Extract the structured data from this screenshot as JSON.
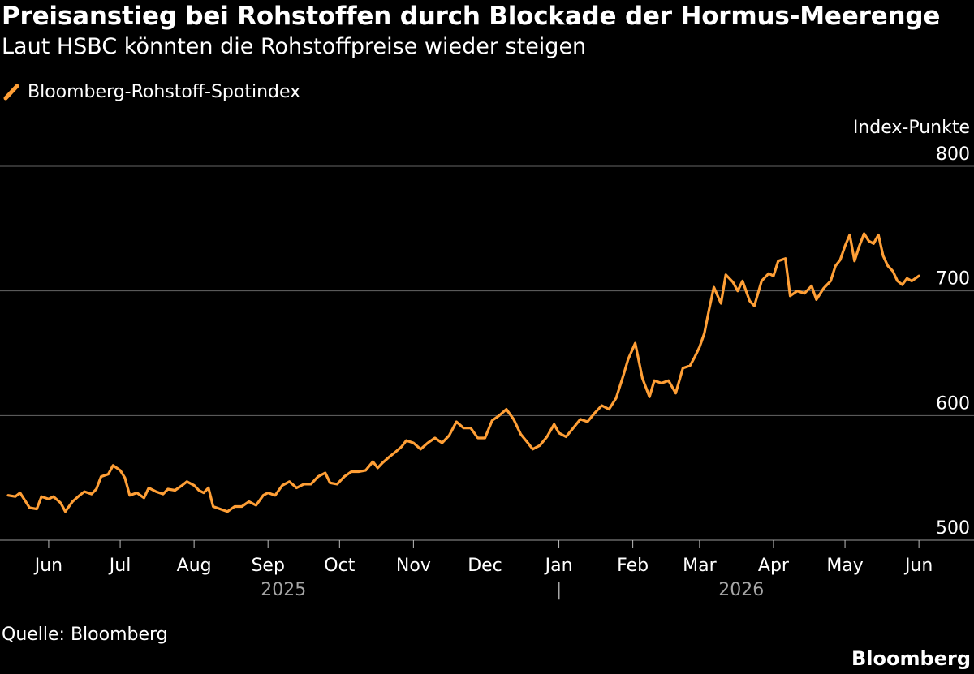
{
  "header": {
    "title": "Preisanstieg bei Rohstoffen durch Blockade der Hormus-Meerenge",
    "subtitle": "Laut HSBC könnten die Rohstoffpreise wieder steigen"
  },
  "footer": {
    "source": "Quelle: Bloomberg",
    "brand": "Bloomberg"
  },
  "colors": {
    "background": "#000000",
    "line": "#ff9f36",
    "grid": "#666666",
    "text": "#ffffff",
    "year_text": "#a6a6a6"
  },
  "chart_data": {
    "type": "line",
    "title": "Preisanstieg bei Rohstoffen durch Blockade der Hormus-Meerenge",
    "subtitle": "Laut HSBC könnten die Rohstoffpreise wieder steigen",
    "ylabel": "Index-Punkte",
    "ylim": [
      500,
      800
    ],
    "yticks": [
      500,
      600,
      700,
      800
    ],
    "grid": true,
    "legend_position": "top-left",
    "x_axis": {
      "type": "date",
      "range": [
        "2025-05-15",
        "2026-06-03"
      ],
      "ticks": [
        {
          "label": "Jun",
          "date": "2025-06-01"
        },
        {
          "label": "Jul",
          "date": "2025-07-01"
        },
        {
          "label": "Aug",
          "date": "2025-08-01"
        },
        {
          "label": "Sep",
          "date": "2025-09-01"
        },
        {
          "label": "Oct",
          "date": "2025-10-01"
        },
        {
          "label": "Nov",
          "date": "2025-11-01"
        },
        {
          "label": "Dec",
          "date": "2025-12-01"
        },
        {
          "label": "Jan",
          "date": "2026-01-01"
        },
        {
          "label": "Feb",
          "date": "2026-02-01"
        },
        {
          "label": "Mar",
          "date": "2026-03-01"
        },
        {
          "label": "Apr",
          "date": "2026-04-01"
        },
        {
          "label": "May",
          "date": "2026-05-01"
        },
        {
          "label": "Jun",
          "date": "2026-06-01"
        }
      ],
      "years": [
        {
          "label": "2025",
          "from": "2025-05-15",
          "to": "2026-01-01"
        },
        {
          "label": "2026",
          "from": "2026-01-01",
          "to": "2026-06-03"
        }
      ],
      "year_divider": "|"
    },
    "series": [
      {
        "name": "Bloomberg-Rohstoff-Spotindex",
        "color": "#ff9f36",
        "points": [
          [
            "2025-05-15",
            536
          ],
          [
            "2025-05-18",
            535
          ],
          [
            "2025-05-20",
            538
          ],
          [
            "2025-05-22",
            532
          ],
          [
            "2025-05-24",
            526
          ],
          [
            "2025-05-27",
            525
          ],
          [
            "2025-05-29",
            535
          ],
          [
            "2025-06-01",
            533
          ],
          [
            "2025-06-03",
            535
          ],
          [
            "2025-06-06",
            530
          ],
          [
            "2025-06-08",
            523
          ],
          [
            "2025-06-11",
            531
          ],
          [
            "2025-06-14",
            536
          ],
          [
            "2025-06-16",
            539
          ],
          [
            "2025-06-19",
            537
          ],
          [
            "2025-06-21",
            541
          ],
          [
            "2025-06-23",
            551
          ],
          [
            "2025-06-26",
            553
          ],
          [
            "2025-06-28",
            560
          ],
          [
            "2025-07-01",
            556
          ],
          [
            "2025-07-03",
            550
          ],
          [
            "2025-07-05",
            536
          ],
          [
            "2025-07-08",
            538
          ],
          [
            "2025-07-11",
            534
          ],
          [
            "2025-07-13",
            542
          ],
          [
            "2025-07-16",
            539
          ],
          [
            "2025-07-19",
            537
          ],
          [
            "2025-07-21",
            541
          ],
          [
            "2025-07-24",
            540
          ],
          [
            "2025-07-27",
            544
          ],
          [
            "2025-07-29",
            547
          ],
          [
            "2025-08-01",
            544
          ],
          [
            "2025-08-03",
            540
          ],
          [
            "2025-08-05",
            538
          ],
          [
            "2025-08-07",
            542
          ],
          [
            "2025-08-09",
            527
          ],
          [
            "2025-08-12",
            525
          ],
          [
            "2025-08-15",
            523
          ],
          [
            "2025-08-18",
            527
          ],
          [
            "2025-08-21",
            527
          ],
          [
            "2025-08-24",
            531
          ],
          [
            "2025-08-27",
            528
          ],
          [
            "2025-08-30",
            536
          ],
          [
            "2025-09-01",
            538
          ],
          [
            "2025-09-04",
            536
          ],
          [
            "2025-09-07",
            544
          ],
          [
            "2025-09-10",
            547
          ],
          [
            "2025-09-13",
            542
          ],
          [
            "2025-09-16",
            545
          ],
          [
            "2025-09-19",
            545
          ],
          [
            "2025-09-22",
            551
          ],
          [
            "2025-09-25",
            554
          ],
          [
            "2025-09-27",
            546
          ],
          [
            "2025-09-30",
            545
          ],
          [
            "2025-10-03",
            551
          ],
          [
            "2025-10-06",
            555
          ],
          [
            "2025-10-09",
            555
          ],
          [
            "2025-10-12",
            556
          ],
          [
            "2025-10-15",
            563
          ],
          [
            "2025-10-17",
            558
          ],
          [
            "2025-10-19",
            562
          ],
          [
            "2025-10-22",
            567
          ],
          [
            "2025-10-24",
            570
          ],
          [
            "2025-10-27",
            575
          ],
          [
            "2025-10-29",
            580
          ],
          [
            "2025-11-01",
            578
          ],
          [
            "2025-11-04",
            573
          ],
          [
            "2025-11-07",
            578
          ],
          [
            "2025-11-10",
            582
          ],
          [
            "2025-11-13",
            578
          ],
          [
            "2025-11-16",
            584
          ],
          [
            "2025-11-19",
            595
          ],
          [
            "2025-11-22",
            590
          ],
          [
            "2025-11-25",
            590
          ],
          [
            "2025-11-28",
            582
          ],
          [
            "2025-12-01",
            582
          ],
          [
            "2025-12-04",
            596
          ],
          [
            "2025-12-07",
            600
          ],
          [
            "2025-12-10",
            605
          ],
          [
            "2025-12-13",
            597
          ],
          [
            "2025-12-16",
            585
          ],
          [
            "2025-12-19",
            578
          ],
          [
            "2025-12-21",
            573
          ],
          [
            "2025-12-24",
            576
          ],
          [
            "2025-12-27",
            583
          ],
          [
            "2025-12-30",
            593
          ],
          [
            "2026-01-01",
            586
          ],
          [
            "2026-01-04",
            583
          ],
          [
            "2026-01-07",
            590
          ],
          [
            "2026-01-10",
            597
          ],
          [
            "2026-01-13",
            595
          ],
          [
            "2026-01-16",
            602
          ],
          [
            "2026-01-19",
            608
          ],
          [
            "2026-01-22",
            605
          ],
          [
            "2026-01-25",
            614
          ],
          [
            "2026-01-28",
            632
          ],
          [
            "2026-01-30",
            645
          ],
          [
            "2026-02-02",
            658
          ],
          [
            "2026-02-05",
            630
          ],
          [
            "2026-02-08",
            615
          ],
          [
            "2026-02-10",
            628
          ],
          [
            "2026-02-13",
            626
          ],
          [
            "2026-02-16",
            628
          ],
          [
            "2026-02-19",
            618
          ],
          [
            "2026-02-22",
            638
          ],
          [
            "2026-02-25",
            640
          ],
          [
            "2026-02-27",
            647
          ],
          [
            "2026-03-01",
            655
          ],
          [
            "2026-03-03",
            666
          ],
          [
            "2026-03-05",
            685
          ],
          [
            "2026-03-07",
            703
          ],
          [
            "2026-03-10",
            690
          ],
          [
            "2026-03-12",
            713
          ],
          [
            "2026-03-15",
            707
          ],
          [
            "2026-03-17",
            700
          ],
          [
            "2026-03-19",
            708
          ],
          [
            "2026-03-22",
            692
          ],
          [
            "2026-03-24",
            688
          ],
          [
            "2026-03-27",
            708
          ],
          [
            "2026-03-30",
            714
          ],
          [
            "2026-04-01",
            712
          ],
          [
            "2026-04-03",
            724
          ],
          [
            "2026-04-06",
            726
          ],
          [
            "2026-04-08",
            696
          ],
          [
            "2026-04-11",
            700
          ],
          [
            "2026-04-14",
            698
          ],
          [
            "2026-04-17",
            704
          ],
          [
            "2026-04-19",
            693
          ],
          [
            "2026-04-22",
            702
          ],
          [
            "2026-04-25",
            708
          ],
          [
            "2026-04-27",
            720
          ],
          [
            "2026-04-29",
            725
          ],
          [
            "2026-05-01",
            736
          ],
          [
            "2026-05-03",
            745
          ],
          [
            "2026-05-05",
            724
          ],
          [
            "2026-05-07",
            736
          ],
          [
            "2026-05-09",
            746
          ],
          [
            "2026-05-11",
            740
          ],
          [
            "2026-05-13",
            738
          ],
          [
            "2026-05-15",
            745
          ],
          [
            "2026-05-17",
            728
          ],
          [
            "2026-05-19",
            720
          ],
          [
            "2026-05-21",
            716
          ],
          [
            "2026-05-23",
            708
          ],
          [
            "2026-05-25",
            705
          ],
          [
            "2026-05-27",
            710
          ],
          [
            "2026-05-29",
            708
          ],
          [
            "2026-06-01",
            712
          ]
        ]
      }
    ]
  }
}
